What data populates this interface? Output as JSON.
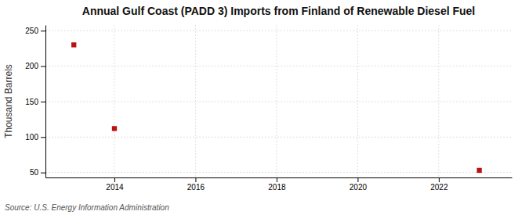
{
  "chart_data": {
    "type": "scatter",
    "title": "Annual Gulf Coast (PADD 3) Imports from Finland of Renewable Diesel Fuel",
    "ylabel": "Thousand Barrels",
    "x": [
      2013,
      2014,
      2023
    ],
    "values": [
      230,
      112,
      53
    ],
    "color": "#bb1111",
    "marker": "square",
    "xlim": [
      2012.3,
      2023.8
    ],
    "ylim": [
      43,
      258
    ],
    "xticks": [
      2014,
      2016,
      2018,
      2020,
      2022
    ],
    "yticks": [
      50,
      100,
      150,
      200,
      250
    ],
    "grid": true,
    "annotations": [
      "Source: U.S. Energy Information Administration"
    ]
  }
}
